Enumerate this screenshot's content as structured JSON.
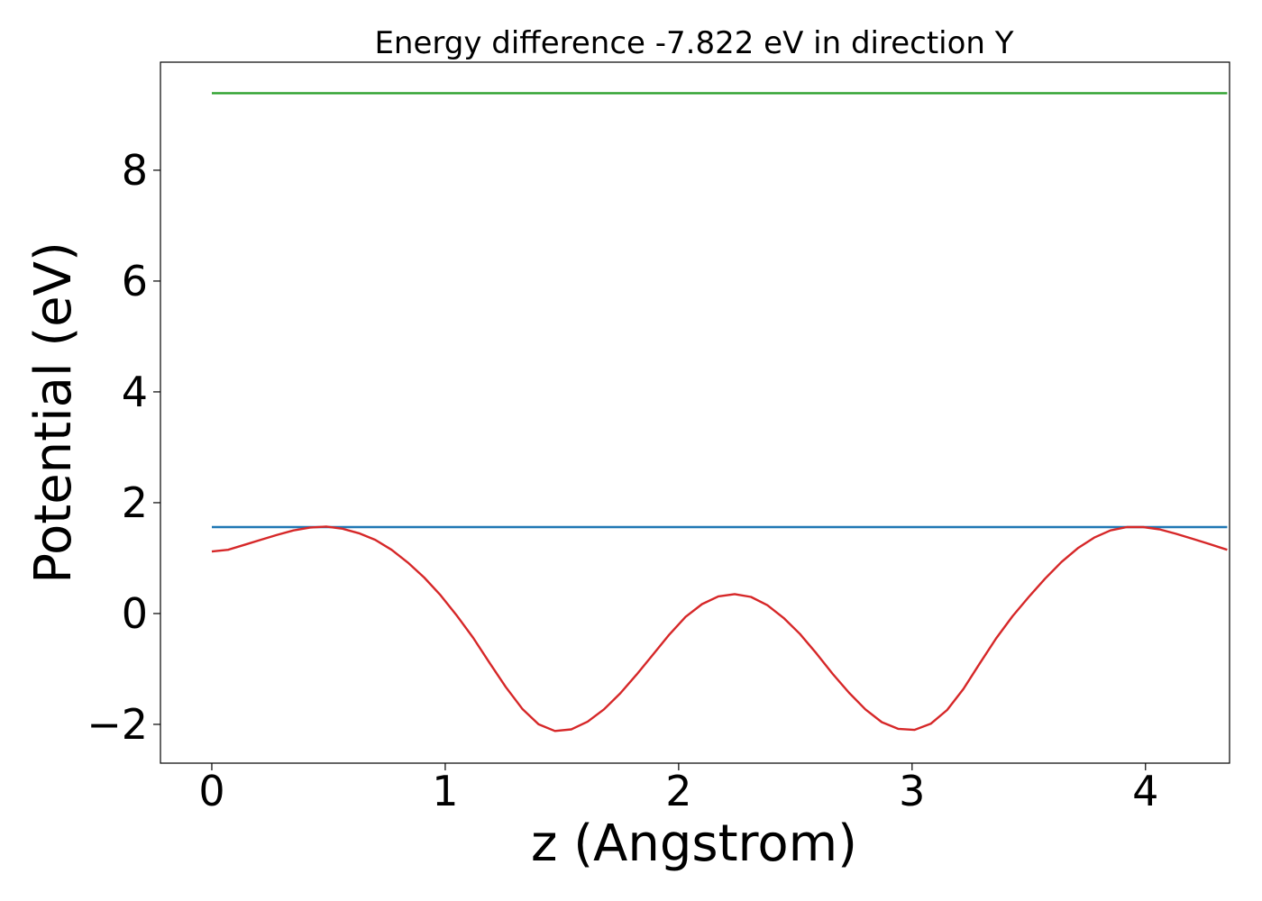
{
  "chart_data": {
    "type": "line",
    "title": "Energy difference -7.822 eV in direction Y",
    "xlabel": "z (Angstrom)",
    "ylabel": "Potential (eV)",
    "xlim": [
      -0.22,
      4.36
    ],
    "ylim": [
      -2.7,
      9.95
    ],
    "xticks": [
      0,
      1,
      2,
      3,
      4
    ],
    "yticks": [
      -2,
      0,
      2,
      4,
      6,
      8
    ],
    "ytick_labels": [
      "−2",
      "0",
      "2",
      "4",
      "6",
      "8"
    ],
    "grid": false,
    "series": [
      {
        "color": "#2ca02c",
        "x": [
          0,
          4.35
        ],
        "y": [
          9.39,
          9.39
        ]
      },
      {
        "color": "#1f77b4",
        "x": [
          0,
          4.35
        ],
        "y": [
          1.56,
          1.56
        ]
      },
      {
        "color": "#d62728",
        "x": [
          0,
          0.07,
          0.14,
          0.21,
          0.28,
          0.35,
          0.42,
          0.49,
          0.56,
          0.63,
          0.7,
          0.77,
          0.84,
          0.91,
          0.98,
          1.05,
          1.12,
          1.19,
          1.26,
          1.33,
          1.4,
          1.47,
          1.54,
          1.61,
          1.68,
          1.75,
          1.82,
          1.89,
          1.96,
          2.03,
          2.1,
          2.17,
          2.24,
          2.31,
          2.38,
          2.45,
          2.52,
          2.59,
          2.66,
          2.73,
          2.8,
          2.87,
          2.94,
          3.01,
          3.08,
          3.15,
          3.22,
          3.29,
          3.36,
          3.43,
          3.5,
          3.57,
          3.64,
          3.71,
          3.78,
          3.85,
          3.92,
          3.99,
          4.06,
          4.13,
          4.2,
          4.27,
          4.35
        ],
        "y": [
          1.12,
          1.15,
          1.24,
          1.33,
          1.42,
          1.5,
          1.55,
          1.57,
          1.53,
          1.45,
          1.33,
          1.15,
          0.92,
          0.65,
          0.33,
          -0.04,
          -0.44,
          -0.89,
          -1.33,
          -1.72,
          -2.0,
          -2.12,
          -2.09,
          -1.95,
          -1.73,
          -1.44,
          -1.1,
          -0.74,
          -0.38,
          -0.06,
          0.17,
          0.31,
          0.35,
          0.3,
          0.15,
          -0.08,
          -0.37,
          -0.72,
          -1.09,
          -1.43,
          -1.73,
          -1.96,
          -2.08,
          -2.1,
          -1.99,
          -1.74,
          -1.36,
          -0.9,
          -0.45,
          -0.05,
          0.3,
          0.63,
          0.93,
          1.18,
          1.37,
          1.5,
          1.56,
          1.56,
          1.52,
          1.44,
          1.35,
          1.26,
          1.15
        ]
      }
    ]
  }
}
